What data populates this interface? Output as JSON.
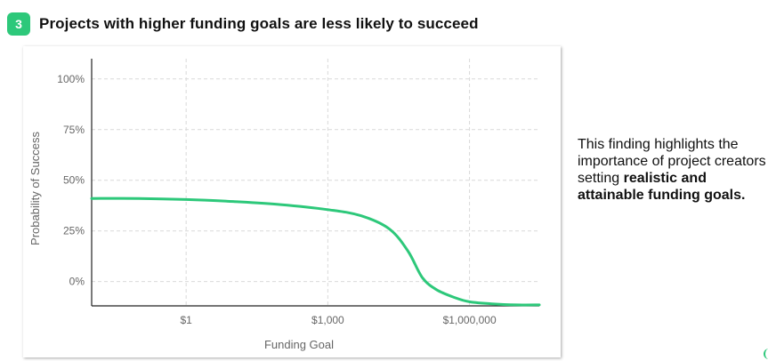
{
  "header": {
    "badge_number": "3",
    "title": "Projects with higher funding goals are less likely to succeed"
  },
  "side_note": {
    "text_normal": "This finding highlights the importance of project creators setting",
    "text_bold": "realistic and attainable funding goals."
  },
  "colors": {
    "accent": "#2dc87a",
    "line": "#2dc87a",
    "grid": "#d9d9d9",
    "axis_text": "#666666"
  },
  "chart_data": {
    "type": "line",
    "xlabel": "Funding Goal",
    "ylabel": "Probability of Success",
    "x_scale": "log10",
    "x_ticks": [
      {
        "value": 1,
        "label": "$1"
      },
      {
        "value": 1000,
        "label": "$1,000"
      },
      {
        "value": 1000000,
        "label": "$1,000,000"
      }
    ],
    "y_ticks": [
      {
        "value": 0,
        "label": "0%"
      },
      {
        "value": 0.25,
        "label": "25%"
      },
      {
        "value": 0.5,
        "label": "50%"
      },
      {
        "value": 0.75,
        "label": "75%"
      },
      {
        "value": 1.0,
        "label": "100%"
      }
    ],
    "xlim": [
      0.01,
      30000000
    ],
    "ylim": [
      -0.12,
      1.1
    ],
    "grid": true,
    "series": [
      {
        "points": [
          {
            "x": 0.01,
            "y": 0.41
          },
          {
            "x": 0.1,
            "y": 0.41
          },
          {
            "x": 1,
            "y": 0.405
          },
          {
            "x": 10,
            "y": 0.395
          },
          {
            "x": 100,
            "y": 0.38
          },
          {
            "x": 1000,
            "y": 0.355
          },
          {
            "x": 5000,
            "y": 0.325
          },
          {
            "x": 20000,
            "y": 0.26
          },
          {
            "x": 50000,
            "y": 0.15
          },
          {
            "x": 100000,
            "y": 0.02
          },
          {
            "x": 200000,
            "y": -0.04
          },
          {
            "x": 500000,
            "y": -0.08
          },
          {
            "x": 1000000,
            "y": -0.1
          },
          {
            "x": 3000000,
            "y": -0.11
          },
          {
            "x": 10000000,
            "y": -0.115
          },
          {
            "x": 30000000,
            "y": -0.115
          }
        ]
      }
    ]
  }
}
